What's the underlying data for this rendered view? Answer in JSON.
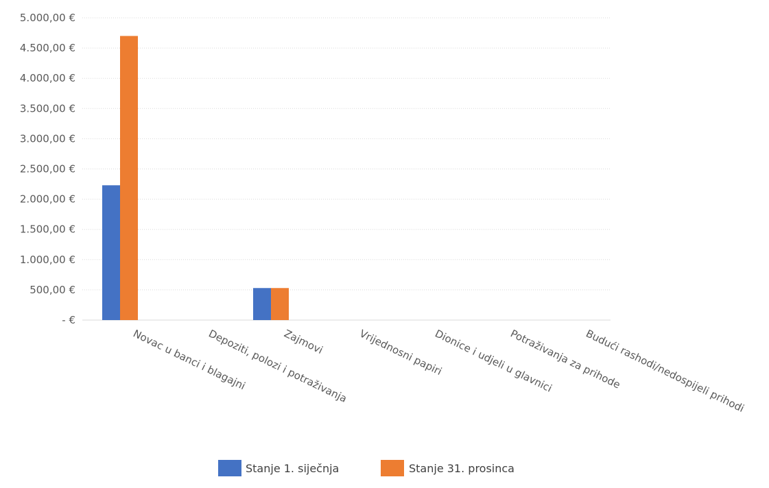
{
  "chart_data": {
    "type": "bar",
    "title": "",
    "xlabel": "",
    "ylabel": "",
    "ylim": [
      0,
      5000
    ],
    "grid": true,
    "legend_position": "bottom",
    "y_ticks": [
      {
        "value": 0,
        "label": "-   €"
      },
      {
        "value": 500,
        "label": "500,00 €"
      },
      {
        "value": 1000,
        "label": "1.000,00 €"
      },
      {
        "value": 1500,
        "label": "1.500,00 €"
      },
      {
        "value": 2000,
        "label": "2.000,00 €"
      },
      {
        "value": 2500,
        "label": "2.500,00 €"
      },
      {
        "value": 3000,
        "label": "3.000,00 €"
      },
      {
        "value": 3500,
        "label": "3.500,00 €"
      },
      {
        "value": 4000,
        "label": "4.000,00 €"
      },
      {
        "value": 4500,
        "label": "4.500,00 €"
      },
      {
        "value": 5000,
        "label": "5.000,00 €"
      }
    ],
    "categories": [
      "Novac u banci i blagajni",
      "Depoziti, polozi i potraživanja",
      "Zajmovi",
      "Vrijednosni papiri",
      "Dionice i udjeli u glavnici",
      "Potraživanja za prihode",
      "Budući rashodi/nedospijeli prihodi"
    ],
    "series": [
      {
        "name": "Stanje 1. siječnja",
        "color": "#4472c4",
        "values": [
          2230,
          0,
          530,
          0,
          0,
          0,
          0
        ]
      },
      {
        "name": "Stanje 31. prosinca",
        "color": "#ed7d31",
        "values": [
          4700,
          0,
          530,
          0,
          0,
          0,
          0
        ]
      }
    ]
  }
}
